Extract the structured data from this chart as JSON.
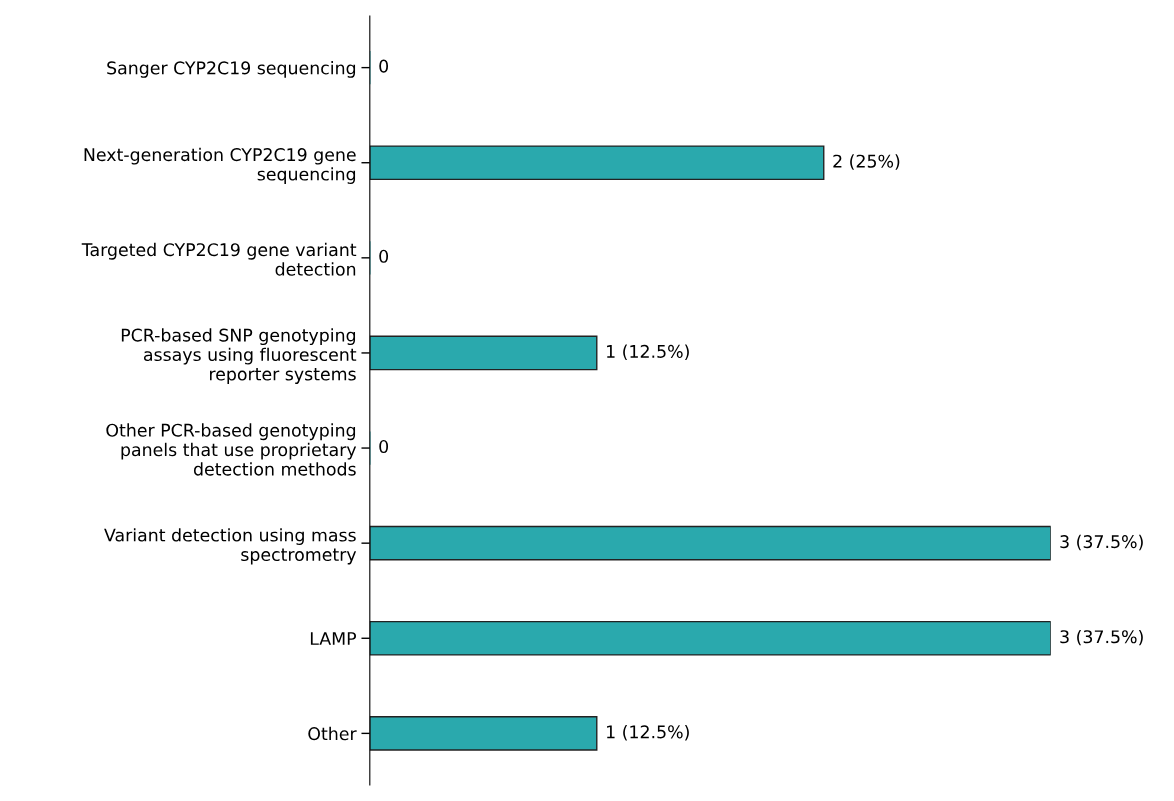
{
  "chart_data": {
    "type": "bar",
    "orientation": "horizontal",
    "categories": [
      "Sanger CYP2C19 sequencing",
      "Next-generation CYP2C19 gene sequencing",
      "Targeted CYP2C19 gene variant detection",
      "PCR-based SNP genotyping assays using fluorescent reporter systems",
      "Other PCR-based genotyping panels that use proprietary detection methods",
      "Variant detection using mass spectrometry",
      "LAMP",
      "Other"
    ],
    "values": [
      0,
      2,
      0,
      1,
      0,
      3,
      3,
      1
    ],
    "value_labels": [
      "0",
      "2 (25%)",
      "0",
      "1 (12.5%)",
      "0",
      "3 (37.5%)",
      "3 (37.5%)",
      "1 (12.5%)"
    ],
    "color": "#2aa9ad",
    "grid": false
  }
}
